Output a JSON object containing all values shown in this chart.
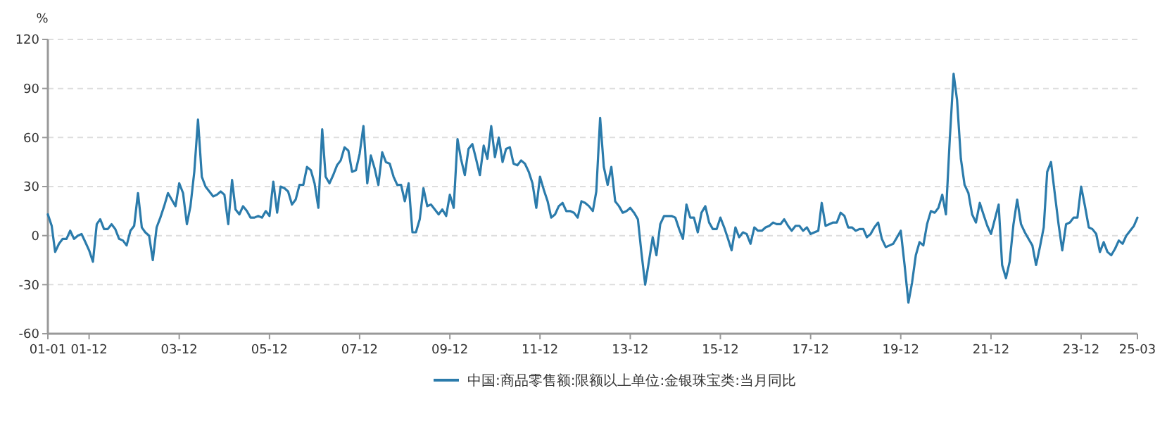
{
  "chart_data": {
    "type": "line",
    "ylabel": "%",
    "x": [
      "2001-01",
      "2001-02",
      "2001-03",
      "2001-04",
      "2001-05",
      "2001-06",
      "2001-07",
      "2001-08",
      "2001-09",
      "2001-10",
      "2001-11",
      "2001-12",
      "2002-01",
      "2002-02",
      "2002-03",
      "2002-04",
      "2002-05",
      "2002-06",
      "2002-07",
      "2002-08",
      "2002-09",
      "2002-10",
      "2002-11",
      "2002-12",
      "2003-01",
      "2003-02",
      "2003-03",
      "2003-04",
      "2003-05",
      "2003-06",
      "2003-07",
      "2003-08",
      "2003-09",
      "2003-10",
      "2003-11",
      "2003-12",
      "2004-01",
      "2004-02",
      "2004-03",
      "2004-04",
      "2004-05",
      "2004-06",
      "2004-07",
      "2004-08",
      "2004-09",
      "2004-10",
      "2004-11",
      "2004-12",
      "2005-01",
      "2005-02",
      "2005-03",
      "2005-04",
      "2005-05",
      "2005-06",
      "2005-07",
      "2005-08",
      "2005-09",
      "2005-10",
      "2005-11",
      "2005-12",
      "2006-01",
      "2006-02",
      "2006-03",
      "2006-04",
      "2006-05",
      "2006-06",
      "2006-07",
      "2006-08",
      "2006-09",
      "2006-10",
      "2006-11",
      "2006-12",
      "2007-01",
      "2007-02",
      "2007-03",
      "2007-04",
      "2007-05",
      "2007-06",
      "2007-07",
      "2007-08",
      "2007-09",
      "2007-10",
      "2007-11",
      "2007-12",
      "2008-01",
      "2008-02",
      "2008-03",
      "2008-04",
      "2008-05",
      "2008-06",
      "2008-07",
      "2008-08",
      "2008-09",
      "2008-10",
      "2008-11",
      "2008-12",
      "2009-01",
      "2009-02",
      "2009-03",
      "2009-04",
      "2009-05",
      "2009-06",
      "2009-07",
      "2009-08",
      "2009-09",
      "2009-10",
      "2009-11",
      "2009-12",
      "2010-01",
      "2010-02",
      "2010-03",
      "2010-04",
      "2010-05",
      "2010-06",
      "2010-07",
      "2010-08",
      "2010-09",
      "2010-10",
      "2010-11",
      "2010-12",
      "2011-01",
      "2011-02",
      "2011-03",
      "2011-04",
      "2011-05",
      "2011-06",
      "2011-07",
      "2011-08",
      "2011-09",
      "2011-10",
      "2011-11",
      "2011-12",
      "2012-01",
      "2012-02",
      "2012-03",
      "2012-04",
      "2012-05",
      "2012-06",
      "2012-07",
      "2012-08",
      "2012-09",
      "2012-10",
      "2012-11",
      "2012-12",
      "2013-01",
      "2013-02",
      "2013-03",
      "2013-04",
      "2013-05",
      "2013-06",
      "2013-07",
      "2013-08",
      "2013-09",
      "2013-10",
      "2013-11",
      "2013-12",
      "2014-01",
      "2014-02",
      "2014-03",
      "2014-04",
      "2014-05",
      "2014-06",
      "2014-07",
      "2014-08",
      "2014-09",
      "2014-10",
      "2014-11",
      "2014-12",
      "2015-01",
      "2015-02",
      "2015-03",
      "2015-04",
      "2015-05",
      "2015-06",
      "2015-07",
      "2015-08",
      "2015-09",
      "2015-10",
      "2015-11",
      "2015-12",
      "2016-01",
      "2016-02",
      "2016-03",
      "2016-04",
      "2016-05",
      "2016-06",
      "2016-07",
      "2016-08",
      "2016-09",
      "2016-10",
      "2016-11",
      "2016-12",
      "2017-01",
      "2017-02",
      "2017-03",
      "2017-04",
      "2017-05",
      "2017-06",
      "2017-07",
      "2017-08",
      "2017-09",
      "2017-10",
      "2017-11",
      "2017-12",
      "2018-01",
      "2018-02",
      "2018-03",
      "2018-04",
      "2018-05",
      "2018-06",
      "2018-07",
      "2018-08",
      "2018-09",
      "2018-10",
      "2018-11",
      "2018-12",
      "2019-01",
      "2019-02",
      "2019-03",
      "2019-04",
      "2019-05",
      "2019-06",
      "2019-07",
      "2019-08",
      "2019-09",
      "2019-10",
      "2019-11",
      "2019-12",
      "2020-01",
      "2020-02",
      "2020-03",
      "2020-04",
      "2020-05",
      "2020-06",
      "2020-07",
      "2020-08",
      "2020-09",
      "2020-10",
      "2020-11",
      "2020-12",
      "2021-01",
      "2021-02",
      "2021-03",
      "2021-04",
      "2021-05",
      "2021-06",
      "2021-07",
      "2021-08",
      "2021-09",
      "2021-10",
      "2021-11",
      "2021-12",
      "2022-01",
      "2022-02",
      "2022-03",
      "2022-04",
      "2022-05",
      "2022-06",
      "2022-07",
      "2022-08",
      "2022-09",
      "2022-10",
      "2022-11",
      "2022-12",
      "2023-01",
      "2023-02",
      "2023-03",
      "2023-04",
      "2023-05",
      "2023-06",
      "2023-07",
      "2023-08",
      "2023-09",
      "2023-10",
      "2023-11",
      "2023-12",
      "2024-01",
      "2024-02",
      "2024-03",
      "2024-04",
      "2024-05",
      "2024-06",
      "2024-07",
      "2024-08",
      "2024-09",
      "2024-10",
      "2024-11",
      "2024-12",
      "2025-01",
      "2025-02",
      "2025-03"
    ],
    "series": [
      {
        "name": "中国:商品零售额:限额以上单位:金银珠宝类:当月同比",
        "color": "#2b7bab",
        "values": [
          13,
          6,
          -10,
          -5,
          -2,
          -2,
          3,
          -2,
          0,
          1,
          -4,
          -9,
          -16,
          7,
          10,
          4,
          4,
          7,
          4,
          -2,
          -3,
          -6,
          3,
          6,
          26,
          5,
          2,
          0,
          -15,
          5,
          11,
          18,
          26,
          22,
          18,
          32,
          26,
          7,
          18,
          39,
          71,
          36,
          30,
          27,
          24,
          25,
          27,
          25,
          7,
          34,
          16,
          13,
          18,
          15,
          11,
          11,
          12,
          11,
          15,
          12,
          33,
          14,
          30,
          29,
          27,
          19,
          22,
          31,
          31,
          42,
          40,
          32,
          17,
          65,
          36,
          32,
          37,
          43,
          46,
          54,
          52,
          39,
          40,
          50,
          67,
          32,
          49,
          41,
          31,
          51,
          45,
          44,
          36,
          31,
          31,
          21,
          32,
          2,
          2,
          10,
          29,
          18,
          19,
          16,
          13,
          16,
          12,
          25,
          17,
          59,
          47,
          37,
          53,
          56,
          47,
          37,
          55,
          47,
          67,
          48,
          60,
          45,
          53,
          54,
          44,
          43,
          46,
          44,
          39,
          32,
          17,
          36,
          28,
          21,
          11,
          13,
          18,
          20,
          15,
          15,
          14,
          11,
          21,
          20,
          18,
          15,
          27,
          72,
          42,
          31,
          42,
          21,
          18,
          14,
          15,
          17,
          14,
          10,
          -10,
          -30,
          -16,
          -1,
          -12,
          7,
          12,
          12,
          12,
          11,
          4,
          -2,
          19,
          11,
          11,
          2,
          14,
          18,
          8,
          4,
          4,
          11,
          5,
          -2,
          -9,
          5,
          -1,
          2,
          1,
          -5,
          5,
          3,
          3,
          5,
          6,
          8,
          7,
          7,
          10,
          6,
          3,
          6,
          6,
          3,
          5,
          1,
          2,
          3,
          20,
          6,
          7,
          8,
          8,
          14,
          12,
          5,
          5,
          3,
          4,
          4,
          -1,
          1,
          5,
          8,
          -2,
          -7,
          -6,
          -5,
          -1,
          3,
          -18,
          -41,
          -29,
          -12,
          -4,
          -6,
          7,
          15,
          14,
          17,
          25,
          13,
          59,
          99,
          83,
          47,
          31,
          26,
          13,
          8,
          20,
          13,
          6,
          1,
          10,
          19,
          -18,
          -26,
          -16,
          7,
          22,
          7,
          2,
          -2,
          -6,
          -18,
          -7,
          5,
          39,
          45,
          26,
          7,
          -9,
          7,
          8,
          11,
          11,
          30,
          18,
          5,
          4,
          1,
          -10,
          -4,
          -10,
          -12,
          -8,
          -3,
          -5,
          0,
          3,
          6,
          11
        ]
      }
    ],
    "xlim": [
      "2001-01",
      "2025-03"
    ],
    "xticks": [
      {
        "value": "2001-01",
        "label": "01-01"
      },
      {
        "value": "2001-12",
        "label": "01-12"
      },
      {
        "value": "2003-12",
        "label": "03-12"
      },
      {
        "value": "2005-12",
        "label": "05-12"
      },
      {
        "value": "2007-12",
        "label": "07-12"
      },
      {
        "value": "2009-12",
        "label": "09-12"
      },
      {
        "value": "2011-12",
        "label": "11-12"
      },
      {
        "value": "2013-12",
        "label": "13-12"
      },
      {
        "value": "2015-12",
        "label": "15-12"
      },
      {
        "value": "2017-12",
        "label": "17-12"
      },
      {
        "value": "2019-12",
        "label": "19-12"
      },
      {
        "value": "2021-12",
        "label": "21-12"
      },
      {
        "value": "2023-12",
        "label": "23-12"
      },
      {
        "value": "2025-03",
        "label": "25-03"
      }
    ],
    "ylim": [
      -60,
      120
    ],
    "yticks": [
      -60,
      -30,
      0,
      30,
      60,
      90,
      120
    ],
    "grid": "y",
    "legend": "bottom"
  }
}
